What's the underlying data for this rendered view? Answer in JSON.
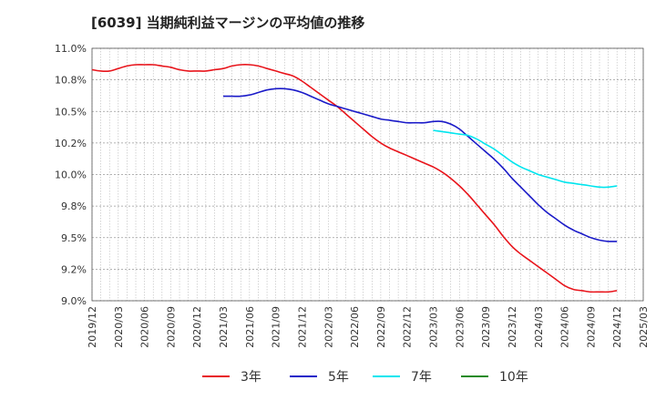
{
  "chart_data": {
    "type": "line",
    "title": "[6039]  当期純利益マージンの平均値の推移",
    "xlabel": "",
    "ylabel": "",
    "ylim": [
      9.0,
      11.0
    ],
    "yticks": [
      "9.0%",
      "9.2%",
      "9.5%",
      "9.8%",
      "10.0%",
      "10.2%",
      "10.5%",
      "10.8%",
      "11.0%"
    ],
    "ytick_values": [
      9.0,
      9.25,
      9.5,
      9.75,
      10.0,
      10.25,
      10.5,
      10.75,
      11.0
    ],
    "x_start": "2019/12",
    "x_end": "2025/03",
    "xticks": [
      "2019/12",
      "2020/03",
      "2020/06",
      "2020/09",
      "2020/12",
      "2021/03",
      "2021/06",
      "2021/09",
      "2021/12",
      "2022/03",
      "2022/06",
      "2022/09",
      "2022/12",
      "2023/03",
      "2023/06",
      "2023/09",
      "2023/12",
      "2024/03",
      "2024/06",
      "2024/09",
      "2024/12",
      "2025/03"
    ],
    "grid": true,
    "legend_position": "bottom",
    "series": [
      {
        "name": "3年",
        "color": "#e8141b",
        "x": [
          "2019/12",
          "2020/01",
          "2020/02",
          "2020/03",
          "2020/04",
          "2020/05",
          "2020/06",
          "2020/07",
          "2020/08",
          "2020/09",
          "2020/10",
          "2020/11",
          "2020/12",
          "2021/01",
          "2021/02",
          "2021/03",
          "2021/04",
          "2021/05",
          "2021/06",
          "2021/07",
          "2021/08",
          "2021/09",
          "2021/10",
          "2021/11",
          "2021/12",
          "2022/01",
          "2022/02",
          "2022/03",
          "2022/04",
          "2022/05",
          "2022/06",
          "2022/07",
          "2022/08",
          "2022/09",
          "2022/10",
          "2022/11",
          "2022/12",
          "2023/01",
          "2023/02",
          "2023/03",
          "2023/04",
          "2023/05",
          "2023/06",
          "2023/07",
          "2023/08",
          "2023/09",
          "2023/10",
          "2023/11",
          "2023/12",
          "2024/01",
          "2024/02",
          "2024/03",
          "2024/04",
          "2024/05",
          "2024/06",
          "2024/07",
          "2024/08",
          "2024/09",
          "2024/10",
          "2024/11",
          "2024/12"
        ],
        "values": [
          10.83,
          10.82,
          10.82,
          10.84,
          10.86,
          10.87,
          10.87,
          10.87,
          10.86,
          10.85,
          10.83,
          10.82,
          10.82,
          10.82,
          10.83,
          10.84,
          10.86,
          10.87,
          10.87,
          10.86,
          10.84,
          10.82,
          10.8,
          10.78,
          10.74,
          10.69,
          10.64,
          10.59,
          10.54,
          10.48,
          10.42,
          10.36,
          10.3,
          10.25,
          10.21,
          10.18,
          10.15,
          10.12,
          10.09,
          10.06,
          10.02,
          9.97,
          9.91,
          9.84,
          9.76,
          9.68,
          9.6,
          9.51,
          9.43,
          9.37,
          9.32,
          9.27,
          9.22,
          9.17,
          9.12,
          9.09,
          9.08,
          9.07,
          9.07,
          9.07,
          9.08
        ]
      },
      {
        "name": "5年",
        "color": "#1a1ac8",
        "x": [
          "2021/03",
          "2021/04",
          "2021/05",
          "2021/06",
          "2021/07",
          "2021/08",
          "2021/09",
          "2021/10",
          "2021/11",
          "2021/12",
          "2022/01",
          "2022/02",
          "2022/03",
          "2022/04",
          "2022/05",
          "2022/06",
          "2022/07",
          "2022/08",
          "2022/09",
          "2022/10",
          "2022/11",
          "2022/12",
          "2023/01",
          "2023/02",
          "2023/03",
          "2023/04",
          "2023/05",
          "2023/06",
          "2023/07",
          "2023/08",
          "2023/09",
          "2023/10",
          "2023/11",
          "2023/12",
          "2024/01",
          "2024/02",
          "2024/03",
          "2024/04",
          "2024/05",
          "2024/06",
          "2024/07",
          "2024/08",
          "2024/09",
          "2024/10",
          "2024/11",
          "2024/12"
        ],
        "values": [
          10.62,
          10.62,
          10.62,
          10.63,
          10.65,
          10.67,
          10.68,
          10.68,
          10.67,
          10.65,
          10.62,
          10.59,
          10.56,
          10.54,
          10.52,
          10.5,
          10.48,
          10.46,
          10.44,
          10.43,
          10.42,
          10.41,
          10.41,
          10.41,
          10.42,
          10.42,
          10.4,
          10.36,
          10.3,
          10.24,
          10.18,
          10.12,
          10.05,
          9.97,
          9.9,
          9.83,
          9.76,
          9.7,
          9.65,
          9.6,
          9.56,
          9.53,
          9.5,
          9.48,
          9.47,
          9.47
        ]
      },
      {
        "name": "7年",
        "color": "#00e5ee",
        "x": [
          "2023/03",
          "2023/04",
          "2023/05",
          "2023/06",
          "2023/07",
          "2023/08",
          "2023/09",
          "2023/10",
          "2023/11",
          "2023/12",
          "2024/01",
          "2024/02",
          "2024/03",
          "2024/04",
          "2024/05",
          "2024/06",
          "2024/07",
          "2024/08",
          "2024/09",
          "2024/10",
          "2024/11",
          "2024/12"
        ],
        "values": [
          10.35,
          10.34,
          10.33,
          10.32,
          10.31,
          10.28,
          10.24,
          10.2,
          10.15,
          10.1,
          10.06,
          10.03,
          10.0,
          9.98,
          9.96,
          9.94,
          9.93,
          9.92,
          9.91,
          9.9,
          9.9,
          9.91
        ]
      },
      {
        "name": "10年",
        "color": "#1f8a1f",
        "x": [],
        "values": []
      }
    ]
  }
}
